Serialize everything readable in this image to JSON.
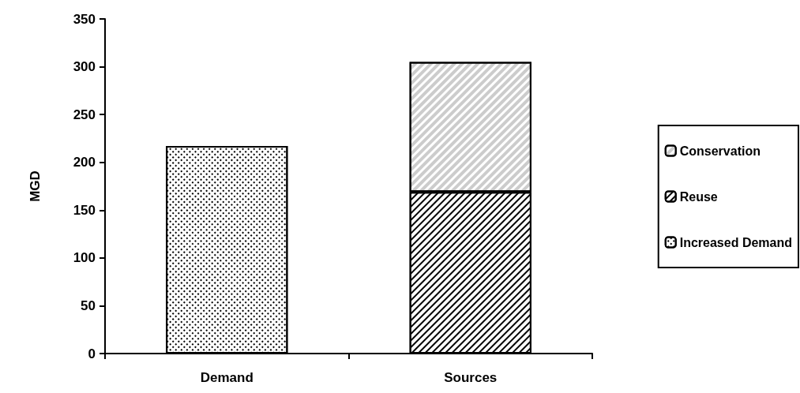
{
  "chart_data": {
    "type": "bar",
    "stacked": true,
    "ylabel": "MGD",
    "categories": [
      "Demand",
      "Sources"
    ],
    "series": [
      {
        "name": "Increased Demand",
        "color": "#ffffff",
        "values": [
          217,
          null
        ]
      },
      {
        "name": "Reuse",
        "color": "#ffffff",
        "values": [
          null,
          169
        ]
      },
      {
        "name": "Conservation",
        "color": "#ffffff",
        "values": [
          null,
          136
        ]
      }
    ],
    "ylim": [
      0,
      350
    ],
    "yticks": [
      0,
      50,
      100,
      150,
      200,
      250,
      300,
      350
    ],
    "grid": false,
    "legend": "right"
  }
}
